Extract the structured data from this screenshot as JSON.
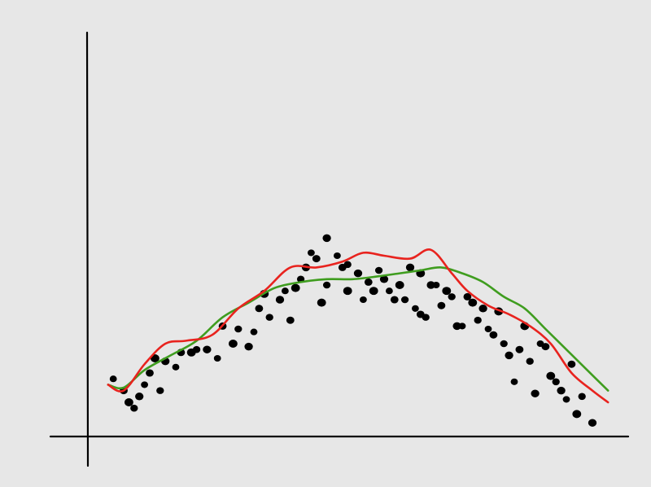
{
  "colors": {
    "background": "#e7e7e7",
    "axis": "#000000",
    "points": "#000000",
    "curve_red": "#e8231e",
    "curve_green": "#3f9d1f"
  },
  "chart_data": {
    "type": "scatter",
    "title": "",
    "xlabel": "",
    "ylabel": "",
    "grid": false,
    "legend": "none",
    "xlim": [
      0,
      100
    ],
    "ylim": [
      0,
      100
    ],
    "points": [
      [
        3,
        18
      ],
      [
        5,
        14
      ],
      [
        6,
        10
      ],
      [
        7,
        8
      ],
      [
        8,
        12
      ],
      [
        9,
        16
      ],
      [
        10,
        20
      ],
      [
        11,
        25
      ],
      [
        12,
        14
      ],
      [
        13,
        24
      ],
      [
        15,
        22
      ],
      [
        16,
        27
      ],
      [
        18,
        27
      ],
      [
        19,
        28
      ],
      [
        21,
        28
      ],
      [
        23,
        25
      ],
      [
        24,
        36
      ],
      [
        26,
        30
      ],
      [
        27,
        35
      ],
      [
        29,
        29
      ],
      [
        30,
        34
      ],
      [
        31,
        42
      ],
      [
        32,
        47
      ],
      [
        33,
        39
      ],
      [
        35,
        45
      ],
      [
        36,
        48
      ],
      [
        37,
        38
      ],
      [
        38,
        49
      ],
      [
        39,
        52
      ],
      [
        40,
        56
      ],
      [
        41,
        61
      ],
      [
        42,
        59
      ],
      [
        43,
        44
      ],
      [
        44,
        50
      ],
      [
        44,
        66
      ],
      [
        46,
        60
      ],
      [
        47,
        56
      ],
      [
        48,
        48
      ],
      [
        48,
        57
      ],
      [
        50,
        54
      ],
      [
        51,
        45
      ],
      [
        52,
        51
      ],
      [
        53,
        48
      ],
      [
        54,
        55
      ],
      [
        55,
        52
      ],
      [
        56,
        48
      ],
      [
        57,
        45
      ],
      [
        58,
        50
      ],
      [
        59,
        45
      ],
      [
        60,
        56
      ],
      [
        61,
        42
      ],
      [
        62,
        40
      ],
      [
        62,
        54
      ],
      [
        63,
        39
      ],
      [
        64,
        50
      ],
      [
        65,
        50
      ],
      [
        66,
        43
      ],
      [
        67,
        48
      ],
      [
        68,
        46
      ],
      [
        69,
        36
      ],
      [
        70,
        36
      ],
      [
        71,
        46
      ],
      [
        72,
        44
      ],
      [
        73,
        38
      ],
      [
        74,
        42
      ],
      [
        75,
        35
      ],
      [
        76,
        33
      ],
      [
        77,
        41
      ],
      [
        78,
        30
      ],
      [
        79,
        26
      ],
      [
        80,
        17
      ],
      [
        81,
        28
      ],
      [
        82,
        36
      ],
      [
        83,
        24
      ],
      [
        84,
        13
      ],
      [
        85,
        30
      ],
      [
        86,
        29
      ],
      [
        87,
        19
      ],
      [
        88,
        17
      ],
      [
        89,
        14
      ],
      [
        90,
        11
      ],
      [
        91,
        23
      ],
      [
        92,
        6
      ],
      [
        93,
        12
      ],
      [
        95,
        3
      ]
    ],
    "series": [
      {
        "x": [
          2,
          5,
          9,
          14,
          19,
          24,
          29,
          34,
          39,
          44,
          49,
          54,
          58,
          62,
          66,
          70,
          74,
          78,
          82,
          86,
          90,
          94,
          98
        ],
        "y": [
          16,
          15,
          21,
          26,
          31,
          39,
          44,
          49,
          51,
          52,
          52,
          53,
          54,
          55,
          56,
          54,
          51,
          46,
          42,
          35,
          28,
          21,
          14
        ]
      },
      {
        "x": [
          2,
          5,
          9,
          13,
          17,
          22,
          27,
          32,
          37,
          42,
          47,
          51,
          55,
          60,
          64,
          68,
          71,
          75,
          79,
          83,
          87,
          91,
          95,
          98
        ],
        "y": [
          16,
          14,
          23,
          30,
          31,
          33,
          42,
          48,
          56,
          56,
          58,
          61,
          60,
          59,
          62,
          54,
          48,
          43,
          40,
          36,
          30,
          20,
          14,
          10
        ]
      }
    ]
  }
}
